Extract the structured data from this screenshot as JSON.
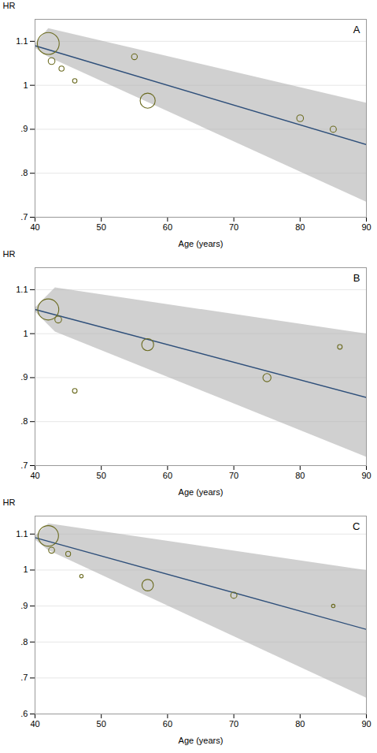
{
  "chart_data": [
    {
      "type": "bubble",
      "annotation": "A",
      "xlabel": "Age (years)",
      "ylabel": "HR",
      "xlim": [
        40,
        90
      ],
      "ylim": [
        0.7,
        1.15
      ],
      "xticks": [
        40,
        50,
        60,
        70,
        80,
        90
      ],
      "yticks": [
        {
          "value": 0.7,
          "label": ".7"
        },
        {
          "value": 0.8,
          "label": ".8"
        },
        {
          "value": 0.9,
          "label": ".9"
        },
        1,
        1.1
      ],
      "grid": "y",
      "ci_band": {
        "upper_x": [
          40,
          42,
          90
        ],
        "upper_y": [
          1.095,
          1.13,
          0.96
        ],
        "lower_x": [
          40,
          42,
          90
        ],
        "lower_y": [
          1.085,
          1.065,
          0.735
        ],
        "color": "#b0b0b0"
      },
      "line": {
        "x": [
          40,
          90
        ],
        "y": [
          1.09,
          0.865
        ],
        "color": "#2e4f7a"
      },
      "points": {
        "x": [
          42,
          42.5,
          44,
          46,
          55,
          57,
          80,
          85
        ],
        "y": [
          1.095,
          1.055,
          1.038,
          1.01,
          1.065,
          0.965,
          0.925,
          0.9
        ],
        "size": [
          400,
          38,
          22,
          16,
          28,
          190,
          38,
          32
        ],
        "color": "#6b6b20"
      }
    },
    {
      "type": "bubble",
      "annotation": "B",
      "xlabel": "Age (years)",
      "ylabel": "HR",
      "xlim": [
        40,
        90
      ],
      "ylim": [
        0.7,
        1.15
      ],
      "xticks": [
        40,
        50,
        60,
        70,
        80,
        90
      ],
      "yticks": [
        {
          "value": 0.7,
          "label": ".7"
        },
        {
          "value": 0.8,
          "label": ".8"
        },
        {
          "value": 0.9,
          "label": ".9"
        },
        1,
        1.1
      ],
      "grid": "y",
      "ci_band": {
        "upper_x": [
          40,
          43,
          90
        ],
        "upper_y": [
          1.06,
          1.105,
          1.0
        ],
        "lower_x": [
          40,
          43,
          90
        ],
        "lower_y": [
          1.05,
          1.005,
          0.72
        ],
        "color": "#b0b0b0"
      },
      "line": {
        "x": [
          40,
          90
        ],
        "y": [
          1.055,
          0.855
        ],
        "color": "#2e4f7a"
      },
      "points": {
        "x": [
          42,
          43.5,
          46,
          57,
          75,
          86
        ],
        "y": [
          1.055,
          1.032,
          0.87,
          0.975,
          0.9,
          0.97
        ],
        "size": [
          370,
          38,
          18,
          120,
          55,
          18
        ],
        "color": "#6b6b20"
      }
    },
    {
      "type": "bubble",
      "annotation": "C",
      "xlabel": "Age (years)",
      "ylabel": "HR",
      "xlim": [
        40,
        90
      ],
      "ylim": [
        0.6,
        1.15
      ],
      "xticks": [
        40,
        50,
        60,
        70,
        80,
        90
      ],
      "yticks": [
        {
          "value": 0.6,
          "label": ".6"
        },
        {
          "value": 0.7,
          "label": ".7"
        },
        {
          "value": 0.8,
          "label": ".8"
        },
        {
          "value": 0.9,
          "label": ".9"
        },
        1,
        1.1
      ],
      "grid": "y",
      "ci_band": {
        "upper_x": [
          40,
          42,
          90
        ],
        "upper_y": [
          1.095,
          1.13,
          1.0
        ],
        "lower_x": [
          40,
          42,
          90
        ],
        "lower_y": [
          1.085,
          1.055,
          0.645
        ],
        "color": "#b0b0b0"
      },
      "line": {
        "x": [
          40,
          90
        ],
        "y": [
          1.09,
          0.835
        ],
        "color": "#2e4f7a"
      },
      "points": {
        "x": [
          42,
          42.5,
          45,
          47,
          57,
          70,
          85
        ],
        "y": [
          1.095,
          1.055,
          1.045,
          0.983,
          0.958,
          0.93,
          0.9
        ],
        "size": [
          350,
          30,
          20,
          10,
          110,
          32,
          10
        ],
        "color": "#6b6b20"
      }
    }
  ]
}
